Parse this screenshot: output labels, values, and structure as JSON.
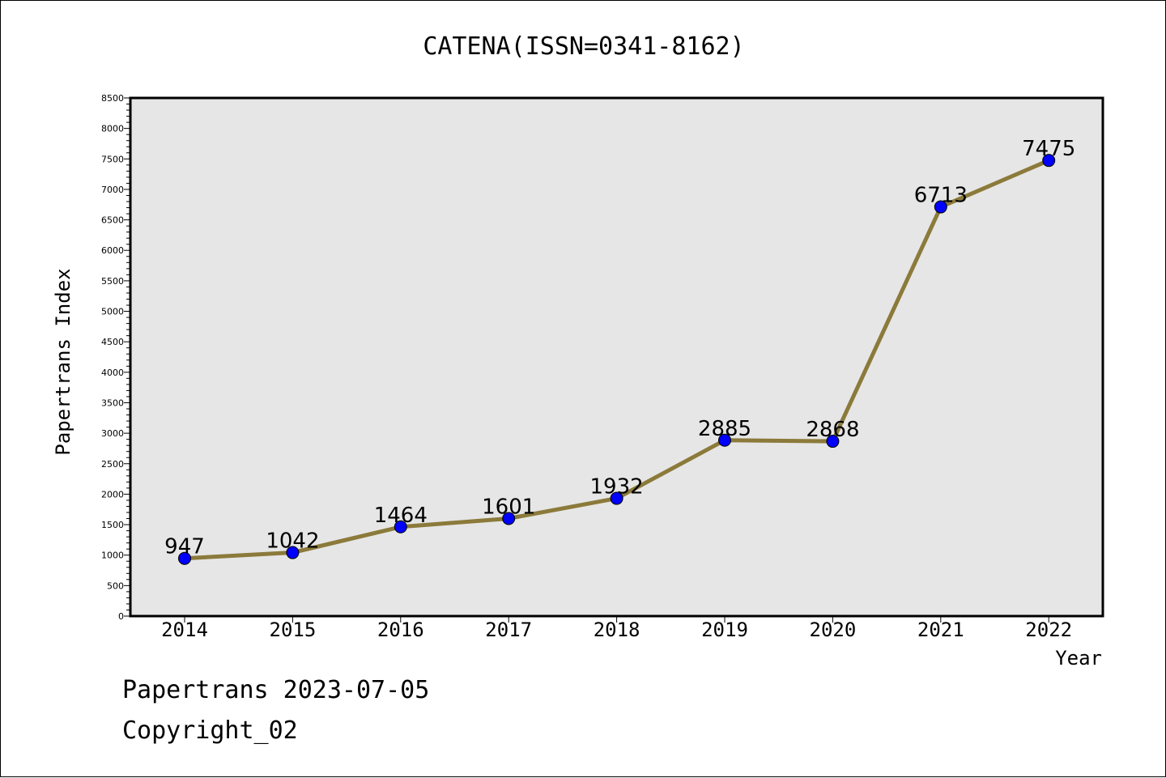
{
  "chart_data": {
    "type": "line",
    "title": "CATENA(ISSN=0341-8162)",
    "xlabel": "Year",
    "ylabel": "Papertrans Index",
    "categories": [
      "2014",
      "2015",
      "2016",
      "2017",
      "2018",
      "2019",
      "2020",
      "2021",
      "2022"
    ],
    "series": [
      {
        "values": [
          947,
          1042,
          1464,
          1601,
          1932,
          2885,
          2868,
          6713,
          7475
        ]
      }
    ],
    "data_labels": [
      "947",
      "1042",
      "1464",
      "1601",
      "1932",
      "2885",
      "2868",
      "6713",
      "7475"
    ],
    "ylim": [
      0,
      8500
    ],
    "yticks": [
      "0",
      "500",
      "1000",
      "1500",
      "2000",
      "2500",
      "3000",
      "3500",
      "4000",
      "4500",
      "5000",
      "5500",
      "6000",
      "6500",
      "7000",
      "7500",
      "8000",
      "8500"
    ],
    "grid": false,
    "legend": "none",
    "colors": {
      "line": "#8b7a3a",
      "marker": "#0000ff",
      "plot_background": "#e6e6e6"
    }
  },
  "footer": {
    "date_line": "Papertrans 2023-07-05",
    "copyright_line": "Copyright_02"
  }
}
